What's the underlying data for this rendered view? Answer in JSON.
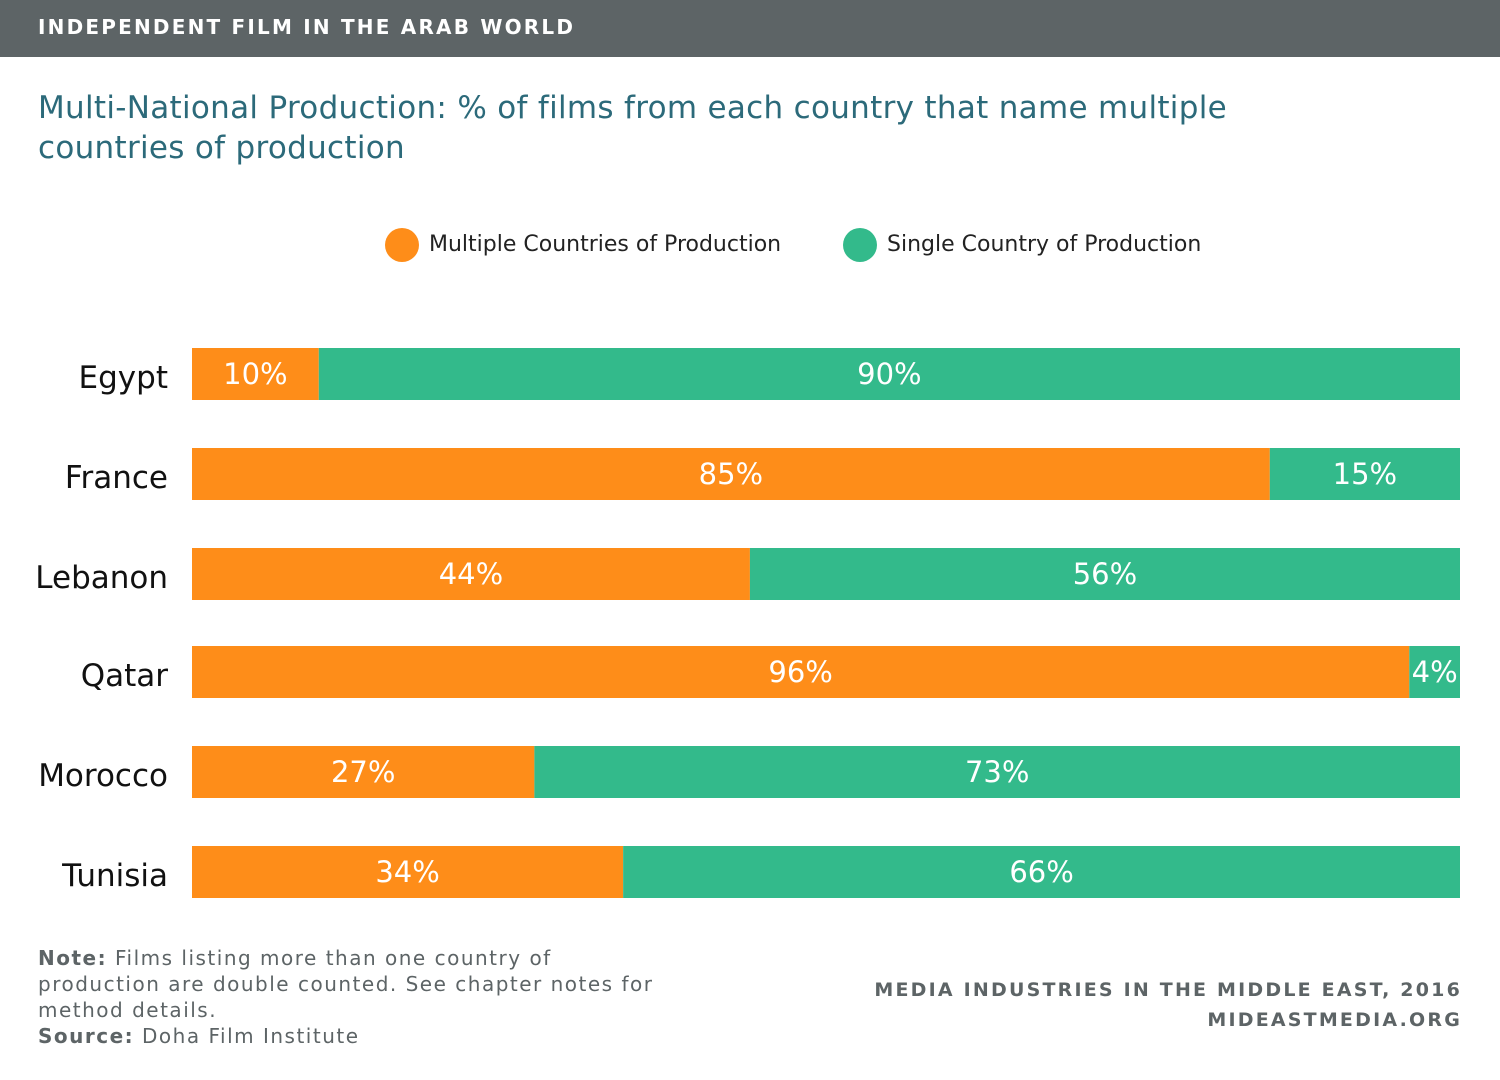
{
  "header": {
    "banner": "INDEPENDENT FILM IN THE ARAB WORLD"
  },
  "chart_data": {
    "type": "bar",
    "orientation": "horizontal",
    "stacked": true,
    "title": "Multi-National Production: % of films from each country that name multiple countries of production",
    "categories": [
      "Egypt",
      "France",
      "Lebanon",
      "Qatar",
      "Morocco",
      "Tunisia"
    ],
    "series": [
      {
        "name": "Multiple Countries of Production",
        "color": "#fe8d19",
        "values": [
          10,
          85,
          44,
          96,
          27,
          34
        ]
      },
      {
        "name": "Single Country of Production",
        "color": "#33ba8b",
        "values": [
          90,
          15,
          56,
          4,
          73,
          66
        ]
      }
    ],
    "value_suffix": "%",
    "xlim": [
      0,
      100
    ],
    "legend_position": "top-center",
    "grid": false
  },
  "notes": {
    "note_label": "Note:",
    "note_text": "Films listing more than one country of production are double counted. See chapter notes for method details.",
    "source_label": "Source:",
    "source_text": "Doha Film Institute"
  },
  "credit": {
    "line1": "MEDIA INDUSTRIES IN THE MIDDLE EAST, 2016",
    "line2": "MIDEASTMEDIA.ORG"
  }
}
